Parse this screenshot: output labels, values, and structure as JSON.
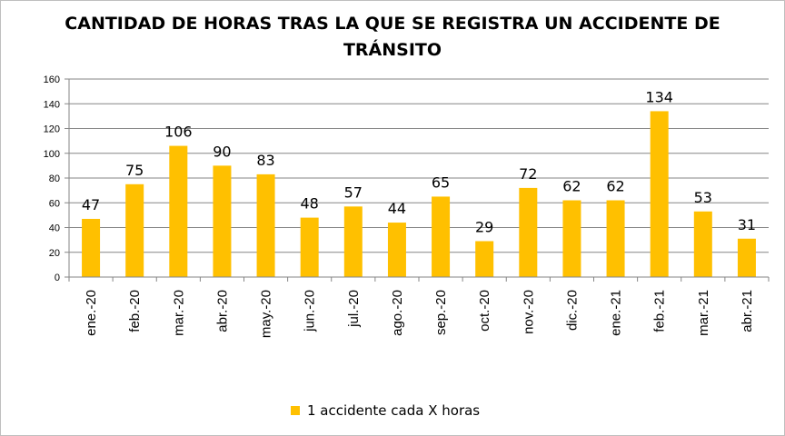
{
  "chart_data": {
    "type": "bar",
    "title": "CANTIDAD DE HORAS TRAS LA QUE SE REGISTRA UN ACCIDENTE DE TRÁNSITO",
    "categories": [
      "ene.-20",
      "feb.-20",
      "mar.-20",
      "abr.-20",
      "may.-20",
      "jun.-20",
      "jul.-20",
      "ago.-20",
      "sep.-20",
      "oct.-20",
      "nov.-20",
      "dic.-20",
      "ene.-21",
      "feb.-21",
      "mar.-21",
      "abr.-21"
    ],
    "series": [
      {
        "name": "1 accidente cada X horas",
        "values": [
          47,
          75,
          106,
          90,
          83,
          48,
          57,
          44,
          65,
          29,
          72,
          62,
          62,
          134,
          53,
          31
        ],
        "color": "#FFC000"
      }
    ],
    "ylim": [
      0,
      160
    ],
    "yticks": [
      0,
      20,
      40,
      60,
      80,
      100,
      120,
      140,
      160
    ],
    "grid": true,
    "data_labels": true,
    "legend": "bottom"
  }
}
